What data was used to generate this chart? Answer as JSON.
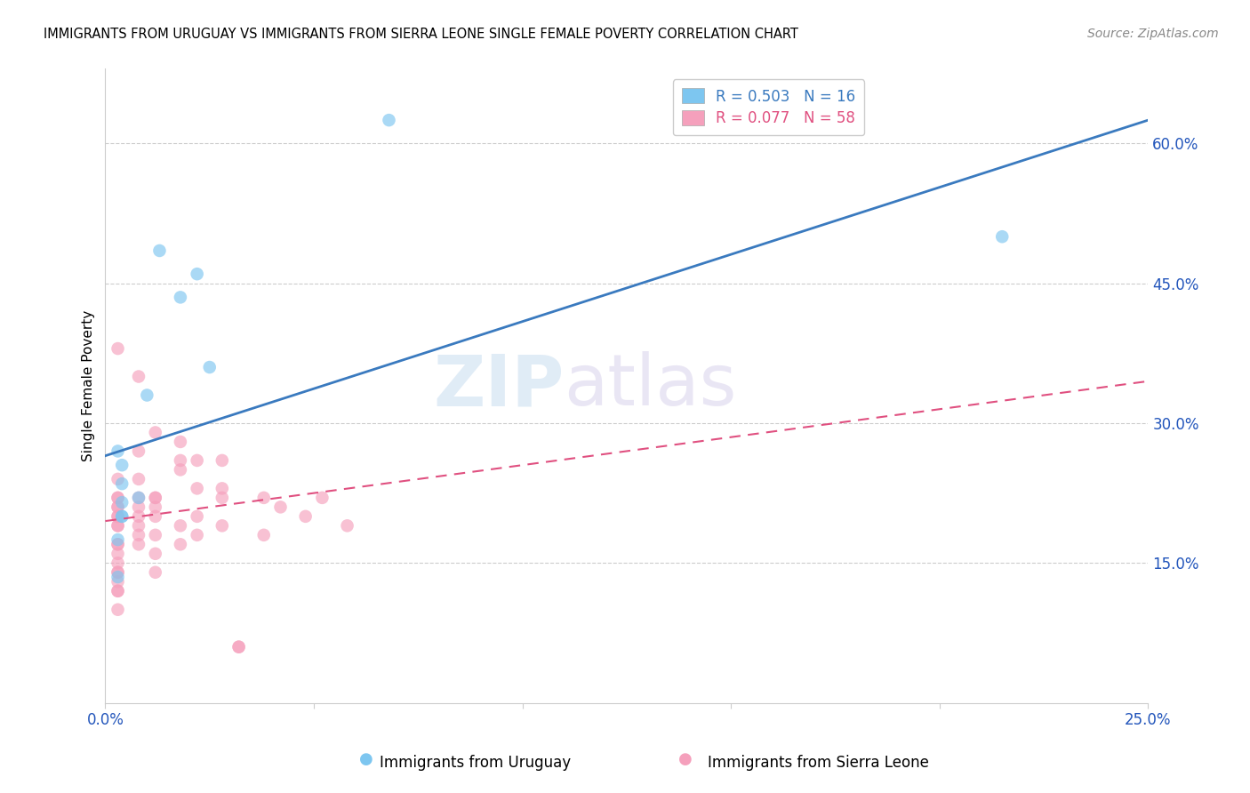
{
  "title": "IMMIGRANTS FROM URUGUAY VS IMMIGRANTS FROM SIERRA LEONE SINGLE FEMALE POVERTY CORRELATION CHART",
  "source": "Source: ZipAtlas.com",
  "ylabel": "Single Female Poverty",
  "legend_label1": "Immigrants from Uruguay",
  "legend_label2": "Immigrants from Sierra Leone",
  "R1": 0.503,
  "N1": 16,
  "R2": 0.077,
  "N2": 58,
  "color1": "#7dc6f0",
  "color2": "#f5a0bc",
  "line_color1": "#3a7abf",
  "line_color2": "#e05080",
  "xlim": [
    0.0,
    0.25
  ],
  "ylim": [
    0.0,
    0.68
  ],
  "xticks": [
    0.0,
    0.05,
    0.1,
    0.15,
    0.2,
    0.25
  ],
  "xticklabels": [
    "0.0%",
    "",
    "",
    "",
    "",
    "25.0%"
  ],
  "yticks_right": [
    0.15,
    0.3,
    0.45,
    0.6
  ],
  "ytick_labels_right": [
    "15.0%",
    "30.0%",
    "45.0%",
    "60.0%"
  ],
  "watermark_zip": "ZIP",
  "watermark_atlas": "atlas",
  "line1_x0": 0.0,
  "line1_y0": 0.265,
  "line1_x1": 0.25,
  "line1_y1": 0.625,
  "line2_x0": 0.0,
  "line2_y0": 0.195,
  "line2_x1": 0.25,
  "line2_y1": 0.345,
  "uruguay_x": [
    0.013,
    0.018,
    0.022,
    0.025,
    0.01,
    0.004,
    0.004,
    0.008,
    0.004,
    0.004,
    0.003,
    0.004,
    0.003,
    0.068,
    0.215,
    0.003
  ],
  "uruguay_y": [
    0.485,
    0.435,
    0.46,
    0.36,
    0.33,
    0.255,
    0.235,
    0.22,
    0.215,
    0.2,
    0.27,
    0.2,
    0.175,
    0.625,
    0.5,
    0.135
  ],
  "leone_x": [
    0.003,
    0.003,
    0.003,
    0.003,
    0.003,
    0.003,
    0.003,
    0.003,
    0.003,
    0.003,
    0.003,
    0.003,
    0.003,
    0.003,
    0.003,
    0.003,
    0.003,
    0.003,
    0.003,
    0.003,
    0.008,
    0.008,
    0.008,
    0.008,
    0.008,
    0.008,
    0.008,
    0.008,
    0.008,
    0.012,
    0.012,
    0.012,
    0.012,
    0.012,
    0.012,
    0.012,
    0.012,
    0.018,
    0.018,
    0.018,
    0.018,
    0.018,
    0.022,
    0.022,
    0.022,
    0.022,
    0.028,
    0.028,
    0.028,
    0.028,
    0.032,
    0.032,
    0.038,
    0.038,
    0.042,
    0.048,
    0.052,
    0.058
  ],
  "leone_y": [
    0.38,
    0.24,
    0.22,
    0.22,
    0.21,
    0.21,
    0.2,
    0.2,
    0.19,
    0.19,
    0.17,
    0.17,
    0.16,
    0.15,
    0.14,
    0.14,
    0.13,
    0.12,
    0.12,
    0.1,
    0.35,
    0.27,
    0.24,
    0.22,
    0.21,
    0.2,
    0.19,
    0.18,
    0.17,
    0.29,
    0.22,
    0.22,
    0.21,
    0.2,
    0.18,
    0.16,
    0.14,
    0.28,
    0.26,
    0.25,
    0.19,
    0.17,
    0.26,
    0.23,
    0.2,
    0.18,
    0.26,
    0.23,
    0.22,
    0.19,
    0.06,
    0.06,
    0.22,
    0.18,
    0.21,
    0.2,
    0.22,
    0.19
  ]
}
